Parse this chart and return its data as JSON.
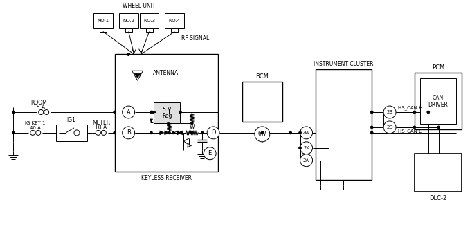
{
  "bg_color": "#ffffff",
  "line_color": "#000000",
  "fig_width": 6.79,
  "fig_height": 3.28,
  "dpi": 100,
  "room_label": [
    "ROOM",
    "15 A"
  ],
  "igkey_label": [
    "IG KEY 1",
    "40 A"
  ],
  "ig1_label": "IG1",
  "meter_label": [
    "METER",
    "10 A"
  ],
  "wheel_unit_label": "WHEEL UNIT",
  "wheel_nos": [
    "NO.1",
    "NO.2",
    "NO.3",
    "NO.4"
  ],
  "rf_signal_label": "RF SIGNAL",
  "antenna_label": "ANTENNA",
  "kr_label": "KEYLESS RECEIVER",
  "reg_label": [
    "5 V",
    "Reg"
  ],
  "bcm_label": "BCM",
  "ic_label": "INSTRUMENT CLUSTER",
  "pcm_label": "PCM",
  "can_driver_label": [
    "CAN",
    "DRIVER"
  ],
  "dlc_label": "DLC-2",
  "conn_6w": "6W",
  "conn_2w": "2W",
  "conn_2k": "2K",
  "conn_2a": "2A",
  "conn_2b": "2B",
  "conn_2d": "2D",
  "conn_a": "A",
  "conn_b": "B",
  "conn_d": "D",
  "conn_e": "E",
  "hs_can_h": "HS_CAN H",
  "hs_can_l": "HS_CAN L"
}
